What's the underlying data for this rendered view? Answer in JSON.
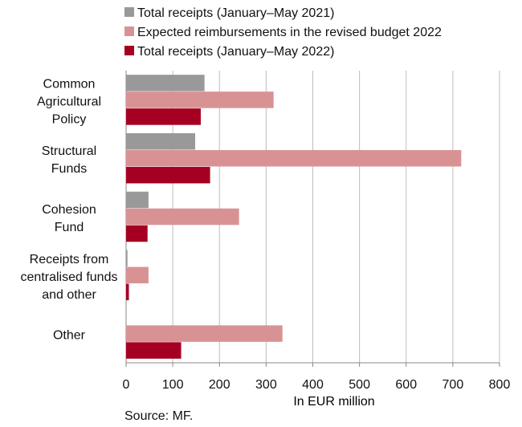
{
  "chart_data": {
    "type": "bar",
    "orientation": "horizontal",
    "categories": [
      "Common Agricultural Policy",
      "Structural Funds",
      "Cohesion Fund",
      "Receipts from centralised funds and other",
      "Other"
    ],
    "category_lines": [
      [
        "Common",
        "Agricultural",
        "Policy"
      ],
      [
        "Structural",
        "Funds"
      ],
      [
        "Cohesion",
        "Fund"
      ],
      [
        "Receipts from",
        "centralised funds",
        "and other"
      ],
      [
        "Other"
      ]
    ],
    "series": [
      {
        "name": "Total receipts (January–May 2021)",
        "color": "#999999",
        "values": [
          168,
          148,
          48,
          3,
          0
        ]
      },
      {
        "name": "Expected reimbursements in the revised budget  2022",
        "color": "#d99294",
        "values": [
          316,
          718,
          242,
          48,
          335
        ]
      },
      {
        "name": "Total receipts (January–May 2022)",
        "color": "#a50021",
        "values": [
          160,
          180,
          46,
          6,
          118
        ]
      }
    ],
    "xlim": [
      0,
      800
    ],
    "xticks": [
      0,
      100,
      200,
      300,
      400,
      500,
      600,
      700,
      800
    ],
    "xlabel": "In EUR million",
    "grid": "vertical",
    "legend": "top"
  },
  "source": "Source: MF."
}
